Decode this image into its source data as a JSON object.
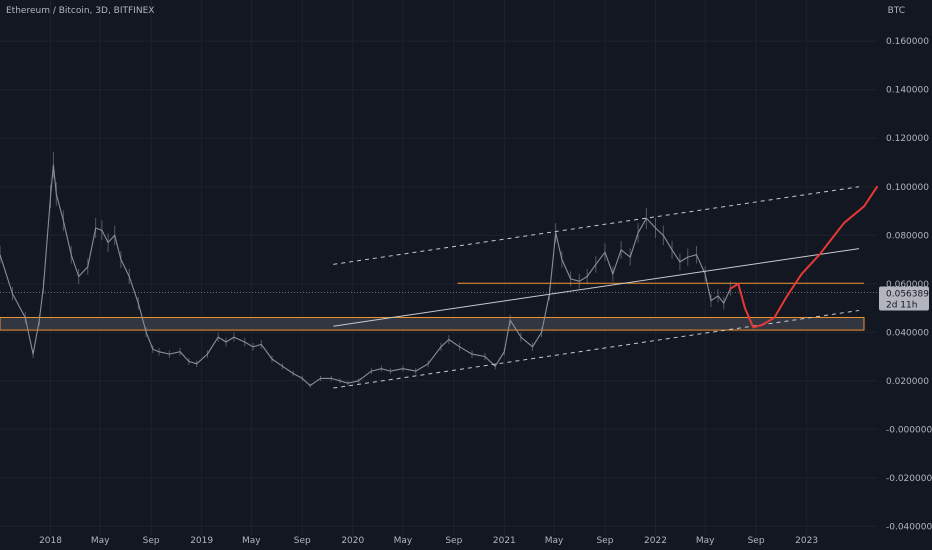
{
  "header": {
    "symbol_title": "Ethereum / Bitcoin, 3D, BITFINEX",
    "unit": "BTC"
  },
  "price_badge": {
    "price": "0.056389",
    "countdown": "2d 11h"
  },
  "colors": {
    "background": "#131722",
    "grid": "#1e222d",
    "axis_text": "#b2b5be",
    "price_series": "#8a8e99",
    "orange_line": "#f0922f",
    "forecast": "#e53935",
    "support_zone_fill": "#363a45",
    "trendline": "#c6c9d0",
    "price_badge_bg": "#b2b5be",
    "price_badge_text": "#131722"
  },
  "chart_data": {
    "type": "line",
    "title": "Ethereum / Bitcoin, 3D, BITFINEX",
    "xlabel": "",
    "ylabel": "BTC",
    "xlim": [
      "2017-09-01",
      "2023-06-20"
    ],
    "ylim": [
      -0.044,
      0.177
    ],
    "grid": true,
    "legend": "none",
    "x_ticks": [
      {
        "date": "2018-01-01",
        "label": "2018"
      },
      {
        "date": "2018-05-01",
        "label": "May"
      },
      {
        "date": "2018-09-01",
        "label": "Sep"
      },
      {
        "date": "2019-01-01",
        "label": "2019"
      },
      {
        "date": "2019-05-01",
        "label": "May"
      },
      {
        "date": "2019-09-01",
        "label": "Sep"
      },
      {
        "date": "2020-01-01",
        "label": "2020"
      },
      {
        "date": "2020-05-01",
        "label": "May"
      },
      {
        "date": "2020-09-01",
        "label": "Sep"
      },
      {
        "date": "2021-01-01",
        "label": "2021"
      },
      {
        "date": "2021-05-01",
        "label": "May"
      },
      {
        "date": "2021-09-01",
        "label": "Sep"
      },
      {
        "date": "2022-01-01",
        "label": "2022"
      },
      {
        "date": "2022-05-01",
        "label": "May"
      },
      {
        "date": "2022-09-01",
        "label": "Sep"
      },
      {
        "date": "2023-01-01",
        "label": "2023"
      }
    ],
    "y_ticks": [
      {
        "value": 0.16,
        "label": "0.160000"
      },
      {
        "value": 0.14,
        "label": "0.140000"
      },
      {
        "value": 0.12,
        "label": "0.120000"
      },
      {
        "value": 0.1,
        "label": "0.100000"
      },
      {
        "value": 0.08,
        "label": "0.080000"
      },
      {
        "value": 0.06,
        "label": "0.060000"
      },
      {
        "value": 0.04,
        "label": "0.040000"
      },
      {
        "value": 0.02,
        "label": "0.020000"
      },
      {
        "value": 0.0,
        "label": "-0.000000"
      },
      {
        "value": -0.02,
        "label": "-0.020000"
      },
      {
        "value": -0.04,
        "label": "-0.040000"
      }
    ],
    "series": [
      {
        "type": "line",
        "x": [
          "2017-09-01",
          "2017-10-01",
          "2017-11-01",
          "2017-11-20",
          "2017-12-05",
          "2017-12-15",
          "2018-01-01",
          "2018-01-08",
          "2018-01-15",
          "2018-02-01",
          "2018-02-20",
          "2018-03-10",
          "2018-04-01",
          "2018-04-20",
          "2018-05-05",
          "2018-05-20",
          "2018-06-05",
          "2018-06-20",
          "2018-07-10",
          "2018-08-01",
          "2018-08-20",
          "2018-09-05",
          "2018-09-20",
          "2018-10-15",
          "2018-11-10",
          "2018-12-01",
          "2018-12-20",
          "2019-01-15",
          "2019-02-10",
          "2019-03-01",
          "2019-03-20",
          "2019-04-15",
          "2019-05-05",
          "2019-05-25",
          "2019-06-20",
          "2019-07-15",
          "2019-08-10",
          "2019-09-01",
          "2019-09-20",
          "2019-10-15",
          "2019-11-10",
          "2019-12-01",
          "2019-12-20",
          "2020-01-15",
          "2020-02-15",
          "2020-03-10",
          "2020-04-01",
          "2020-05-01",
          "2020-06-01",
          "2020-07-01",
          "2020-08-01",
          "2020-08-20",
          "2020-09-15",
          "2020-10-15",
          "2020-11-15",
          "2020-12-10",
          "2021-01-01",
          "2021-01-15",
          "2021-02-10",
          "2021-03-10",
          "2021-04-01",
          "2021-04-20",
          "2021-05-05",
          "2021-05-20",
          "2021-06-10",
          "2021-07-01",
          "2021-07-20",
          "2021-08-10",
          "2021-09-01",
          "2021-09-20",
          "2021-10-10",
          "2021-11-01",
          "2021-11-20",
          "2021-12-10",
          "2022-01-01",
          "2022-01-20",
          "2022-02-10",
          "2022-03-01",
          "2022-03-20",
          "2022-04-10",
          "2022-05-01",
          "2022-05-15",
          "2022-06-01",
          "2022-06-15",
          "2022-07-01"
        ],
        "y": [
          0.072,
          0.056,
          0.046,
          0.031,
          0.045,
          0.059,
          0.096,
          0.109,
          0.097,
          0.086,
          0.072,
          0.063,
          0.067,
          0.083,
          0.082,
          0.077,
          0.08,
          0.07,
          0.063,
          0.052,
          0.04,
          0.033,
          0.032,
          0.031,
          0.032,
          0.028,
          0.027,
          0.031,
          0.038,
          0.036,
          0.038,
          0.036,
          0.034,
          0.035,
          0.029,
          0.026,
          0.023,
          0.021,
          0.018,
          0.021,
          0.021,
          0.02,
          0.019,
          0.02,
          0.024,
          0.025,
          0.024,
          0.025,
          0.024,
          0.027,
          0.034,
          0.037,
          0.034,
          0.031,
          0.03,
          0.026,
          0.032,
          0.045,
          0.038,
          0.034,
          0.04,
          0.056,
          0.081,
          0.07,
          0.062,
          0.061,
          0.063,
          0.068,
          0.073,
          0.064,
          0.074,
          0.071,
          0.081,
          0.087,
          0.083,
          0.08,
          0.074,
          0.069,
          0.071,
          0.072,
          0.064,
          0.053,
          0.055,
          0.052,
          0.058
        ]
      },
      {
        "type": "horizontal_line",
        "y": 0.0602,
        "x_start": "2020-09-10",
        "x_end": "2023-06-20"
      },
      {
        "type": "band",
        "y_low": 0.0409,
        "y_high": 0.0461,
        "x_start": "2017-09-01",
        "x_end": "2023-06-20"
      },
      {
        "type": "line_segment",
        "x": [
          "2019-11-15",
          "2023-06-20"
        ],
        "y": [
          0.0425,
          0.0745
        ]
      },
      {
        "type": "dashed_line",
        "x": [
          "2019-11-15",
          "2023-06-20"
        ],
        "y": [
          0.068,
          0.1
        ]
      },
      {
        "type": "dashed_line",
        "x": [
          "2019-11-15",
          "2023-06-20"
        ],
        "y": [
          0.017,
          0.049
        ]
      },
      {
        "type": "forecast_curve",
        "x": [
          "2022-07-01",
          "2022-07-20",
          "2022-08-05",
          "2022-08-25",
          "2022-09-15",
          "2022-10-15",
          "2022-11-15",
          "2022-12-20",
          "2023-02-01",
          "2023-04-01",
          "2023-05-20",
          "2023-06-20"
        ],
        "y": [
          0.058,
          0.06,
          0.05,
          0.042,
          0.043,
          0.046,
          0.055,
          0.064,
          0.072,
          0.085,
          0.092,
          0.1
        ]
      }
    ]
  }
}
